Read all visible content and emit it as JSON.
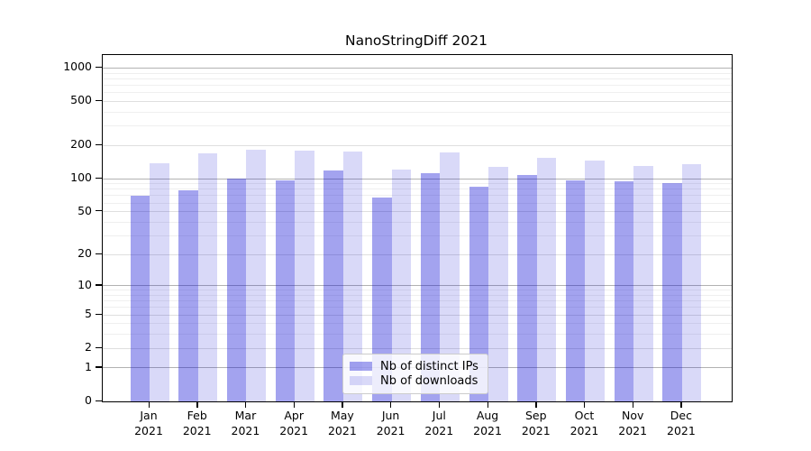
{
  "title": "NanoStringDiff 2021",
  "chart_data": {
    "type": "bar",
    "title": "NanoStringDiff 2021",
    "categories": [
      "Jan",
      "Feb",
      "Mar",
      "Apr",
      "May",
      "Jun",
      "Jul",
      "Aug",
      "Sep",
      "Oct",
      "Nov",
      "Dec"
    ],
    "year": "2021",
    "series": [
      {
        "name": "Nb of distinct IPs",
        "color": "rgba(0,0,210,0.36)",
        "values": [
          70,
          79,
          101,
          97,
          118,
          67,
          112,
          85,
          108,
          97,
          95,
          91
        ]
      },
      {
        "name": "Nb of downloads",
        "color": "rgba(0,0,210,0.15)",
        "values": [
          139,
          170,
          184,
          180,
          177,
          121,
          173,
          128,
          155,
          146,
          130,
          135
        ]
      }
    ],
    "xlabel": "",
    "ylabel": "",
    "yscale": "log1p",
    "yticks": [
      0,
      1,
      2,
      5,
      10,
      20,
      50,
      100,
      200,
      500,
      1000
    ],
    "minor_yticks": [
      3,
      4,
      6,
      7,
      8,
      9,
      30,
      40,
      60,
      70,
      80,
      90,
      300,
      400,
      600,
      700,
      800,
      900
    ],
    "ylim": [
      0,
      1310
    ],
    "grid": true,
    "legend_position": "lower-center"
  },
  "colors": {
    "axis": "#000000",
    "grid_power10": "#b2b2b2",
    "grid_labeled": "#dfdfdf",
    "grid_minor": "#efefef",
    "bar_ips": "rgba(0,0,210,0.36)",
    "bar_downloads": "rgba(0,0,210,0.15)",
    "text": "#000000"
  }
}
